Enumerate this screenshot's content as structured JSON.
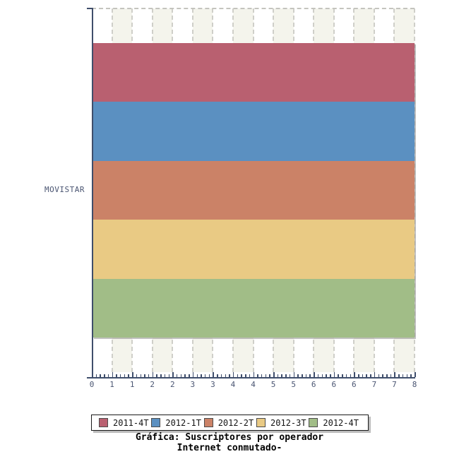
{
  "chart_data": {
    "type": "bar",
    "orientation": "horizontal",
    "title": "Gráfica: Suscriptores por operador",
    "subtitle": "Internet conmutado-",
    "categories": [
      "MOVISTAR"
    ],
    "series": [
      {
        "name": "2011-4T",
        "values": [
          8
        ],
        "color": "#b96070"
      },
      {
        "name": "2012-1T",
        "values": [
          8
        ],
        "color": "#5b90c1"
      },
      {
        "name": "2012-2T",
        "values": [
          8
        ],
        "color": "#cb8267"
      },
      {
        "name": "2012-3T",
        "values": [
          8
        ],
        "color": "#e9ca84"
      },
      {
        "name": "2012-4T",
        "values": [
          8
        ],
        "color": "#a1bd87"
      }
    ],
    "xlim": [
      0,
      8
    ],
    "x_tick_labels": [
      "0",
      "1",
      "1",
      "2",
      "2",
      "3",
      "3",
      "4",
      "4",
      "5",
      "5",
      "6",
      "6",
      "6",
      "7",
      "7",
      "8"
    ],
    "minor_ticks_per_interval": 4,
    "grid": "vertical-dashed",
    "legend_position": "bottom",
    "plot_background_stripes": [
      "#ffffff",
      "#f4f4ec"
    ]
  },
  "styles": {
    "axis_color": "#3f4e6b",
    "tick_label_color": "#4a5572",
    "grid_color": "#cfcfc9",
    "stripe_color": "#f4f4ec",
    "legend_border_color": "#1a1a1a",
    "title_color": "#000000"
  }
}
